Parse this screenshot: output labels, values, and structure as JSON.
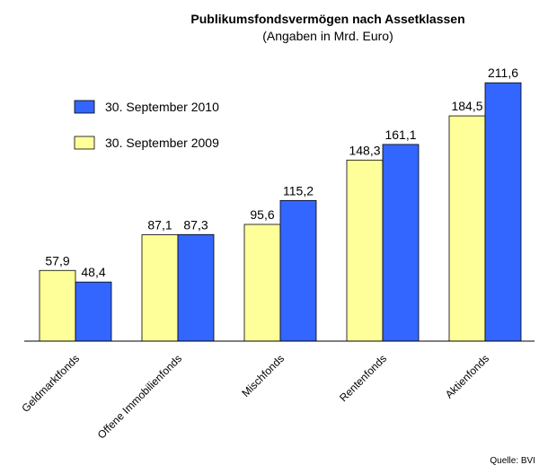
{
  "chart_data": {
    "type": "bar",
    "title": "Publikumsfondsvermögen nach Assetklassen",
    "subtitle": "(Angaben in Mrd. Euro)",
    "source": "Quelle: BVI",
    "categories": [
      "Geldmarktfonds",
      "Offene Immobilienfonds",
      "Mischfonds",
      "Rentenfonds",
      "Aktienfonds"
    ],
    "series": [
      {
        "name": "30. September 2010",
        "color": "#3366ff",
        "values": [
          48.4,
          87.3,
          115.2,
          161.1,
          211.6
        ],
        "value_labels": [
          "48,4",
          "87,3",
          "115,2",
          "161,1",
          "211,6"
        ]
      },
      {
        "name": "30. September 2009",
        "color": "#ffff99",
        "values": [
          57.9,
          87.1,
          95.6,
          148.3,
          184.5
        ],
        "value_labels": [
          "57,9",
          "87,1",
          "95,6",
          "148,3",
          "184,5"
        ]
      }
    ],
    "ylim": [
      0,
      250
    ],
    "legend": "upper left"
  }
}
